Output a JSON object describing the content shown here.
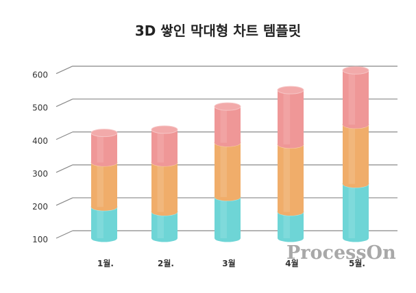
{
  "chart_data": {
    "type": "bar",
    "subtype": "stacked-3d-cylinder",
    "title": "3D 쌓인 막대형 차트 템플릿",
    "categories": [
      "1월.",
      "2월.",
      "3월",
      "4월",
      "5월."
    ],
    "series": [
      {
        "values": [
          95,
          80,
          125,
          80,
          165
        ]
      },
      {
        "values": [
          135,
          150,
          165,
          205,
          180
        ]
      },
      {
        "values": [
          90,
          100,
          110,
          165,
          165
        ]
      }
    ],
    "colors": [
      "#6ed5d6",
      "#f0ad6a",
      "#ef9797"
    ],
    "yticks": [
      100,
      200,
      300,
      400,
      500,
      600
    ],
    "ylim": [
      100,
      600
    ],
    "grid": true,
    "legend": "none"
  },
  "watermark": "ProcessOn"
}
